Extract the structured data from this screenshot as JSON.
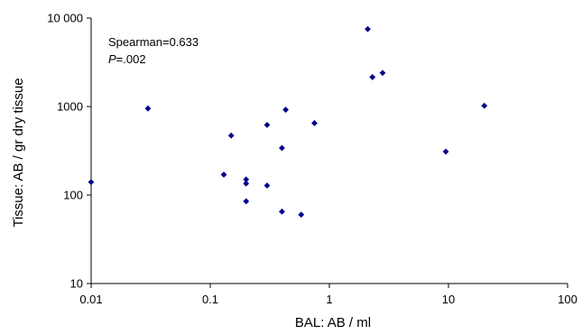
{
  "chart_data": {
    "type": "scatter",
    "title": "",
    "xlabel": "BAL: AB / ml",
    "ylabel": "Tissue: AB / gr dry tissue",
    "xscale": "log",
    "yscale": "log",
    "xlim": [
      0.01,
      100
    ],
    "ylim": [
      10,
      10000
    ],
    "grid": false,
    "legend": "none",
    "marker": "diamond",
    "marker_color": "#00008b",
    "x_ticks": [
      {
        "value": 0.01,
        "label": "0.01"
      },
      {
        "value": 0.1,
        "label": "0.1"
      },
      {
        "value": 1,
        "label": "1"
      },
      {
        "value": 10,
        "label": "10"
      },
      {
        "value": 100,
        "label": "100"
      }
    ],
    "y_ticks": [
      {
        "value": 10,
        "label": "10"
      },
      {
        "value": 100,
        "label": "100"
      },
      {
        "value": 1000,
        "label": "1000"
      },
      {
        "value": 10000,
        "label": "10 000"
      }
    ],
    "annotations": {
      "spearman": "Spearman=0.633",
      "p_italic": "P",
      "p_value": "=.002"
    },
    "points": [
      {
        "x": 0.01,
        "y": 140
      },
      {
        "x": 0.03,
        "y": 950
      },
      {
        "x": 0.13,
        "y": 170
      },
      {
        "x": 0.15,
        "y": 470
      },
      {
        "x": 0.2,
        "y": 150
      },
      {
        "x": 0.2,
        "y": 135
      },
      {
        "x": 0.2,
        "y": 85
      },
      {
        "x": 0.3,
        "y": 620
      },
      {
        "x": 0.3,
        "y": 128
      },
      {
        "x": 0.4,
        "y": 340
      },
      {
        "x": 0.4,
        "y": 65
      },
      {
        "x": 0.43,
        "y": 920
      },
      {
        "x": 0.58,
        "y": 60
      },
      {
        "x": 0.75,
        "y": 650
      },
      {
        "x": 2.1,
        "y": 7500
      },
      {
        "x": 2.3,
        "y": 2150
      },
      {
        "x": 2.8,
        "y": 2400
      },
      {
        "x": 9.5,
        "y": 310
      },
      {
        "x": 20,
        "y": 1020
      }
    ]
  }
}
